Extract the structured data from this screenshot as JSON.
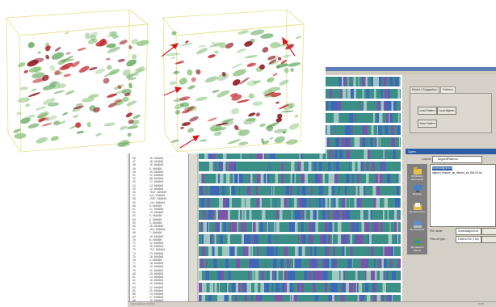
{
  "list": {
    "rows": [
      {
        "n": "46",
        "v": "18.000000"
      },
      {
        "n": "47",
        "v": "48.000000"
      },
      {
        "n": "48",
        "v": "16.000000"
      },
      {
        "n": "49",
        "v": "8.000000"
      },
      {
        "n": "50",
        "v": "29.000000"
      },
      {
        "n": "51",
        "v": "12.000000"
      },
      {
        "n": "52",
        "v": "88.000000"
      },
      {
        "n": "53",
        "v": "17.000000"
      },
      {
        "n": "54",
        "v": "14.000000"
      },
      {
        "n": "55",
        "v": "22.000000"
      },
      {
        "n": "56",
        "v": "7847.000000"
      },
      {
        "n": "57",
        "v": "441.000000"
      },
      {
        "n": "58",
        "v": "2587.000000"
      },
      {
        "n": "59",
        "v": "149.000000"
      },
      {
        "n": "60",
        "v": "9.000000"
      },
      {
        "n": "61",
        "v": "11.000000"
      },
      {
        "n": "62",
        "v": "19.000000"
      },
      {
        "n": "63",
        "v": "9.000000"
      },
      {
        "n": "64",
        "v": "6.000000"
      },
      {
        "n": "65",
        "v": "5.000000"
      },
      {
        "n": "66",
        "v": "28.000000"
      },
      {
        "n": "67",
        "v": "105.000000"
      },
      {
        "n": "68",
        "v": "7.000000"
      },
      {
        "n": "69",
        "v": "10.000000"
      },
      {
        "n": "70",
        "v": "8.000000"
      },
      {
        "n": "71",
        "v": "12.000000"
      },
      {
        "n": "72",
        "v": "30.000000"
      },
      {
        "n": "73",
        "v": "797.000000"
      },
      {
        "n": "74",
        "v": "23.000000"
      },
      {
        "n": "75",
        "v": "10.000000"
      },
      {
        "n": "76",
        "v": "5.000000"
      },
      {
        "n": "77",
        "v": "18.000000"
      },
      {
        "n": "78",
        "v": "22.000000"
      },
      {
        "n": "79",
        "v": "31.000000"
      },
      {
        "n": "80",
        "v": "19.000000"
      },
      {
        "n": "81",
        "v": "13.000000"
      },
      {
        "n": "82",
        "v": "10.000000"
      },
      {
        "n": "83",
        "v": "15.000000"
      },
      {
        "n": "84",
        "v": "12.000000"
      },
      {
        "n": "85",
        "v": "25.000000"
      },
      {
        "n": "86",
        "v": "14.000000"
      },
      {
        "n": "87",
        "v": "17.000000"
      },
      {
        "n": "88",
        "v": "19.000000"
      },
      {
        "n": "89",
        "v": "21.000000"
      }
    ]
  },
  "viz": {
    "band_count": 19,
    "colors": {
      "base": "#3c8f86",
      "stripe_purple": "#7d55a8",
      "stripe_blue": "#3f66b8",
      "stripe_light": "#9ec8c0"
    }
  },
  "right_panel": {
    "tabs": [
      "Model 1 Suggestion",
      "Patterns"
    ],
    "buttons": {
      "load_patterns": "Load Pattern",
      "load_aligned": "Load Aligned",
      "save_patterns": "Save Pattern"
    }
  },
  "dialog": {
    "title": "Open",
    "look_in_label": "Look in:",
    "look_in_value": "AlignedPatterns",
    "files": [
      "SortedAligned.txt",
      "aligned_feature_ab_filtered_ab_BM-03.txt"
    ],
    "sidebar": [
      "My Recent Documents",
      "Desktop",
      "My Documents",
      "My Computer",
      "My Network Places"
    ],
    "file_name_label": "File name:",
    "file_name_value": "SortedAligned.txt",
    "file_type_label": "Files of type:",
    "file_type_value": "Pattern File (*.txt)"
  },
  "status": {
    "left": "Start address: 0x0000",
    "right": "NUM"
  }
}
